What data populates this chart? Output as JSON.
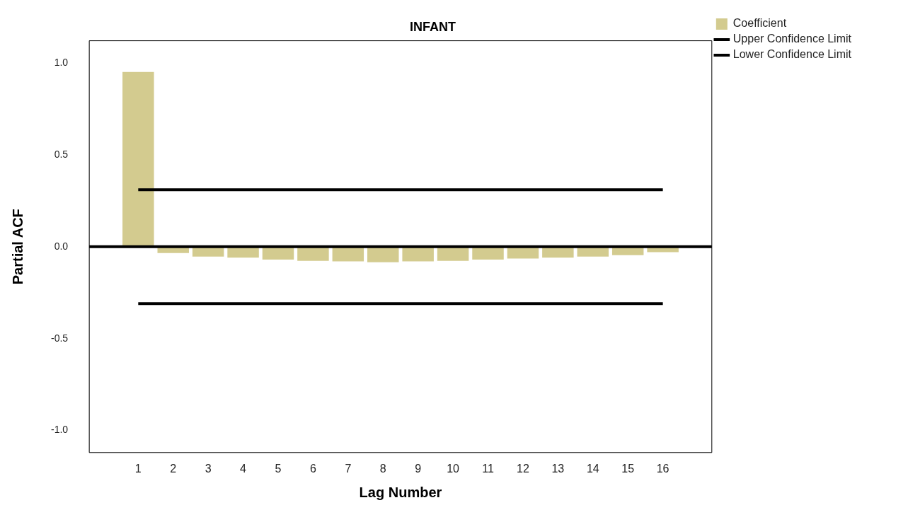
{
  "chart_data": {
    "type": "bar",
    "title": "INFANT",
    "xlabel": "Lag Number",
    "ylabel": "Partial ACF",
    "x": [
      1,
      2,
      3,
      4,
      5,
      6,
      7,
      8,
      9,
      10,
      11,
      12,
      13,
      14,
      15,
      16
    ],
    "series": [
      {
        "name": "Coefficient",
        "color": "#d3cb8f",
        "values": [
          0.95,
          -0.035,
          -0.054,
          -0.06,
          -0.07,
          -0.077,
          -0.08,
          -0.085,
          -0.08,
          -0.077,
          -0.07,
          -0.065,
          -0.06,
          -0.054,
          -0.046,
          -0.03
        ]
      },
      {
        "name": "Upper Confidence Limit",
        "type": "line",
        "color": "#000000",
        "values": [
          0.31,
          0.31,
          0.31,
          0.31,
          0.31,
          0.31,
          0.31,
          0.31,
          0.31,
          0.31,
          0.31,
          0.31,
          0.31,
          0.31,
          0.31,
          0.31
        ]
      },
      {
        "name": "Lower Confidence Limit",
        "type": "line",
        "color": "#000000",
        "values": [
          -0.31,
          -0.31,
          -0.31,
          -0.31,
          -0.31,
          -0.31,
          -0.31,
          -0.31,
          -0.31,
          -0.31,
          -0.31,
          -0.31,
          -0.31,
          -0.31,
          -0.31,
          -0.31
        ]
      }
    ],
    "xlim": [
      -0.4,
      17.4
    ],
    "xticks": [
      1,
      2,
      3,
      4,
      5,
      6,
      7,
      8,
      9,
      10,
      11,
      12,
      13,
      14,
      15,
      16
    ],
    "ylim": [
      -1.12,
      1.12
    ],
    "yticks": [
      {
        "value": -1,
        "label": "-1.0"
      },
      {
        "value": -0.5,
        "label": "-0.5"
      },
      {
        "value": 0,
        "label": "0.0"
      },
      {
        "value": 0.5,
        "label": "0.5"
      },
      {
        "value": 1,
        "label": "1.0"
      }
    ],
    "ref_lines": [
      {
        "axis": "y",
        "value": 0,
        "color": "#000000"
      }
    ],
    "grid": false,
    "legend": "top right",
    "marker": "none",
    "line_style": "solid"
  }
}
